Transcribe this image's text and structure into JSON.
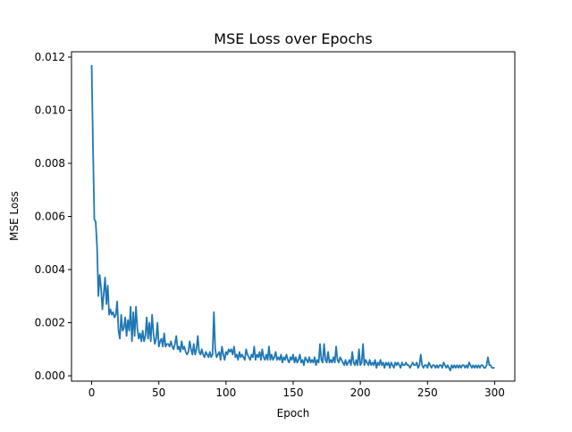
{
  "chart_data": {
    "type": "line",
    "title": "MSE Loss over Epochs",
    "xlabel": "Epoch",
    "ylabel": "MSE Loss",
    "xlim": [
      -15,
      315
    ],
    "ylim": [
      -0.0002,
      0.0122
    ],
    "xticks": [
      0,
      50,
      100,
      150,
      200,
      250,
      300
    ],
    "yticks": [
      0.0,
      0.002,
      0.004,
      0.006,
      0.008,
      0.01,
      0.012
    ],
    "ytick_labels": [
      "0.000",
      "0.002",
      "0.004",
      "0.006",
      "0.008",
      "0.010",
      "0.012"
    ],
    "grid": false,
    "legend": "none",
    "series": [
      {
        "color": "#1f77b4",
        "x": [
          0,
          1,
          2,
          3,
          4,
          5,
          6,
          7,
          8,
          9,
          10,
          11,
          12,
          13,
          14,
          15,
          16,
          17,
          18,
          19,
          20,
          21,
          22,
          23,
          24,
          25,
          26,
          27,
          28,
          29,
          30,
          31,
          32,
          33,
          34,
          35,
          36,
          37,
          38,
          39,
          40,
          41,
          42,
          43,
          44,
          45,
          46,
          47,
          48,
          49,
          50,
          51,
          52,
          53,
          54,
          55,
          56,
          57,
          58,
          59,
          60,
          61,
          62,
          63,
          64,
          65,
          66,
          67,
          68,
          69,
          70,
          71,
          72,
          73,
          74,
          75,
          76,
          77,
          78,
          79,
          80,
          81,
          82,
          83,
          84,
          85,
          86,
          87,
          88,
          89,
          90,
          91,
          92,
          93,
          94,
          95,
          96,
          97,
          98,
          99,
          100,
          101,
          102,
          103,
          104,
          105,
          106,
          107,
          108,
          109,
          110,
          111,
          112,
          113,
          114,
          115,
          116,
          117,
          118,
          119,
          120,
          121,
          122,
          123,
          124,
          125,
          126,
          127,
          128,
          129,
          130,
          131,
          132,
          133,
          134,
          135,
          136,
          137,
          138,
          139,
          140,
          141,
          142,
          143,
          144,
          145,
          146,
          147,
          148,
          149,
          150,
          151,
          152,
          153,
          154,
          155,
          156,
          157,
          158,
          159,
          160,
          161,
          162,
          163,
          164,
          165,
          166,
          167,
          168,
          169,
          170,
          171,
          172,
          173,
          174,
          175,
          176,
          177,
          178,
          179,
          180,
          181,
          182,
          183,
          184,
          185,
          186,
          187,
          188,
          189,
          190,
          191,
          192,
          193,
          194,
          195,
          196,
          197,
          198,
          199,
          200,
          201,
          202,
          203,
          204,
          205,
          206,
          207,
          208,
          209,
          210,
          211,
          212,
          213,
          214,
          215,
          216,
          217,
          218,
          219,
          220,
          221,
          222,
          223,
          224,
          225,
          226,
          227,
          228,
          229,
          230,
          231,
          232,
          233,
          234,
          235,
          236,
          237,
          238,
          239,
          240,
          241,
          242,
          243,
          244,
          245,
          246,
          247,
          248,
          249,
          250,
          251,
          252,
          253,
          254,
          255,
          256,
          257,
          258,
          259,
          260,
          261,
          262,
          263,
          264,
          265,
          266,
          267,
          268,
          269,
          270,
          271,
          272,
          273,
          274,
          275,
          276,
          277,
          278,
          279,
          280,
          281,
          282,
          283,
          284,
          285,
          286,
          287,
          288,
          289,
          290,
          291,
          292,
          293,
          294,
          295,
          296,
          297,
          298,
          299,
          300
        ],
        "values": [
          0.0117,
          0.0086,
          0.0059,
          0.0058,
          0.0049,
          0.003,
          0.0038,
          0.0033,
          0.0025,
          0.0031,
          0.0037,
          0.0027,
          0.0034,
          0.0023,
          0.0025,
          0.0023,
          0.0024,
          0.0022,
          0.0023,
          0.0028,
          0.0017,
          0.0014,
          0.0023,
          0.0017,
          0.0018,
          0.0022,
          0.0015,
          0.0021,
          0.0017,
          0.0026,
          0.0013,
          0.0024,
          0.0015,
          0.0026,
          0.0018,
          0.0014,
          0.0016,
          0.0013,
          0.0017,
          0.0013,
          0.0015,
          0.0022,
          0.0014,
          0.002,
          0.0013,
          0.0023,
          0.0016,
          0.0012,
          0.0014,
          0.002,
          0.0011,
          0.0013,
          0.0014,
          0.0011,
          0.0016,
          0.0011,
          0.0012,
          0.0012,
          0.0011,
          0.0013,
          0.0011,
          0.001,
          0.0012,
          0.0015,
          0.001,
          0.0011,
          0.0009,
          0.0013,
          0.001,
          0.0011,
          0.0009,
          0.0008,
          0.0009,
          0.0013,
          0.001,
          0.0008,
          0.0012,
          0.0008,
          0.001,
          0.0015,
          0.0009,
          0.0008,
          0.001,
          0.0008,
          0.0007,
          0.0009,
          0.0008,
          0.0007,
          0.0009,
          0.0007,
          0.0008,
          0.0024,
          0.001,
          0.0007,
          0.0008,
          0.0009,
          0.0006,
          0.0011,
          0.0008,
          0.0006,
          0.0009,
          0.0008,
          0.001,
          0.0009,
          0.001,
          0.0008,
          0.0011,
          0.0007,
          0.0008,
          0.0006,
          0.0009,
          0.0007,
          0.0008,
          0.0007,
          0.0006,
          0.001,
          0.0008,
          0.0007,
          0.0006,
          0.0008,
          0.0007,
          0.0011,
          0.0006,
          0.0008,
          0.0007,
          0.0009,
          0.0006,
          0.001,
          0.0007,
          0.0006,
          0.0008,
          0.0006,
          0.0011,
          0.0006,
          0.0008,
          0.0006,
          0.0007,
          0.0009,
          0.0006,
          0.0007,
          0.0006,
          0.0008,
          0.0005,
          0.0007,
          0.0006,
          0.0008,
          0.0006,
          0.0005,
          0.0007,
          0.0006,
          0.0008,
          0.0005,
          0.0007,
          0.0005,
          0.0006,
          0.0008,
          0.0005,
          0.0006,
          0.0004,
          0.0007,
          0.0006,
          0.0005,
          0.0007,
          0.0005,
          0.0006,
          0.0005,
          0.0007,
          0.0004,
          0.0006,
          0.0005,
          0.0012,
          0.0006,
          0.0005,
          0.0012,
          0.0006,
          0.0005,
          0.0009,
          0.0005,
          0.0006,
          0.0005,
          0.0007,
          0.0005,
          0.0011,
          0.0006,
          0.0005,
          0.0007,
          0.0006,
          0.0005,
          0.0004,
          0.0006,
          0.0004,
          0.0005,
          0.0006,
          0.0004,
          0.0009,
          0.0005,
          0.0004,
          0.0006,
          0.0004,
          0.001,
          0.0004,
          0.0005,
          0.0012,
          0.0004,
          0.0006,
          0.0005,
          0.0004,
          0.0006,
          0.0004,
          0.0005,
          0.0004,
          0.0006,
          0.0003,
          0.0005,
          0.0004,
          0.0006,
          0.0004,
          0.0005,
          0.0003,
          0.0005,
          0.0004,
          0.0005,
          0.0003,
          0.0005,
          0.0004,
          0.0003,
          0.0005,
          0.0004,
          0.0005,
          0.0004,
          0.0003,
          0.0005,
          0.0004,
          0.0004,
          0.0005,
          0.0004,
          0.0004,
          0.0003,
          0.0004,
          0.0005,
          0.0004,
          0.0004,
          0.0005,
          0.0003,
          0.0004,
          0.0008,
          0.0004,
          0.0003,
          0.0004,
          0.0004,
          0.0003,
          0.0005,
          0.0004,
          0.0003,
          0.0004,
          0.0004,
          0.0003,
          0.0004,
          0.0003,
          0.0004,
          0.0004,
          0.0003,
          0.0005,
          0.0004,
          0.0003,
          0.0004,
          0.0003,
          0.0002,
          0.0004,
          0.0003,
          0.0004,
          0.0003,
          0.0004,
          0.0003,
          0.0004,
          0.0003,
          0.0004,
          0.0004,
          0.0003,
          0.0004,
          0.0003,
          0.0005,
          0.0004,
          0.0003,
          0.0004,
          0.0003,
          0.0004,
          0.0003,
          0.0004,
          0.0003,
          0.0004,
          0.0004,
          0.0003,
          0.0003,
          0.0004,
          0.0007,
          0.0004,
          0.0004,
          0.0003,
          0.0003,
          0.0003
        ]
      }
    ]
  }
}
